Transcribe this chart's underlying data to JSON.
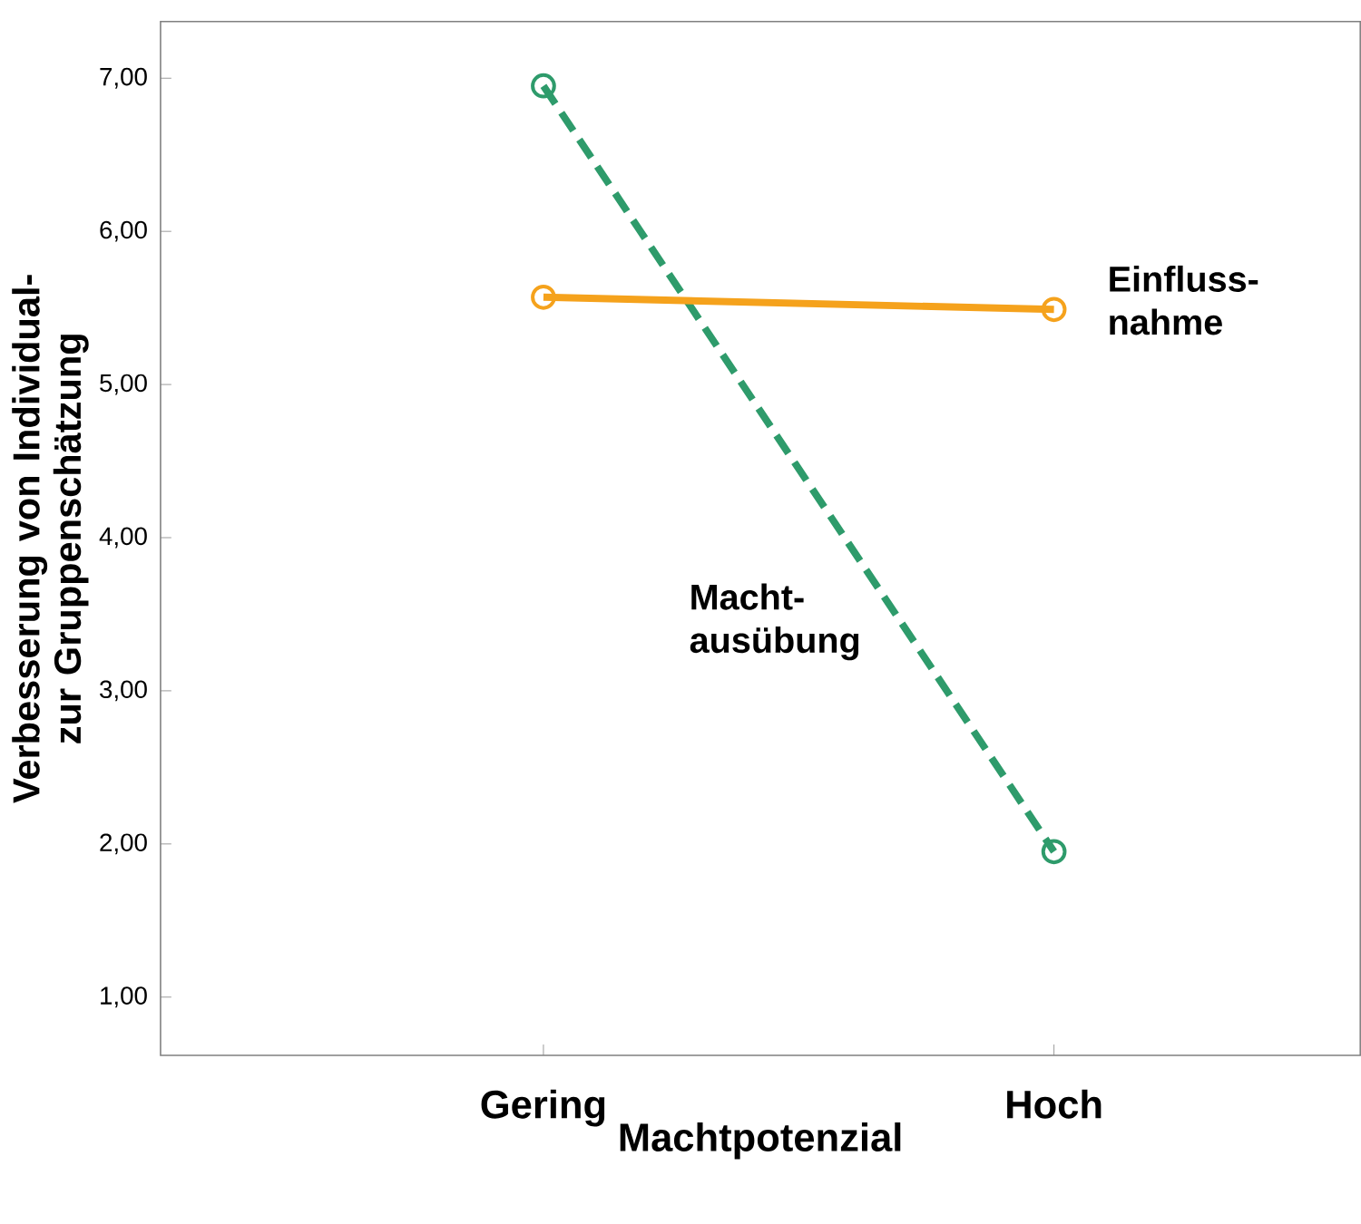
{
  "chart_data": {
    "type": "line",
    "xlabel": "Machtpotenzial",
    "ylabel": "Verbesserung von Individual- zur Gruppenschätzung",
    "categories": [
      "Gering",
      "Hoch"
    ],
    "series": [
      {
        "name": "Macht-ausübung",
        "color": "#2e9b6b",
        "values": [
          6.95,
          1.95
        ],
        "line_style": "dashed"
      },
      {
        "name": "Einfluss-nahme",
        "color": "#f5a21c",
        "values": [
          5.57,
          5.49
        ],
        "line_style": "solid"
      }
    ],
    "ylim": [
      0.62,
      7.37
    ],
    "yticks": [
      {
        "value": 1,
        "label": "1,00"
      },
      {
        "value": 2,
        "label": "2,00"
      },
      {
        "value": 3,
        "label": "3,00"
      },
      {
        "value": 4,
        "label": "4,00"
      },
      {
        "value": 5,
        "label": "5,00"
      },
      {
        "value": 6,
        "label": "6,00"
      },
      {
        "value": 7,
        "label": "7,00"
      }
    ],
    "grid": false,
    "legend": false,
    "marker": "circle"
  }
}
